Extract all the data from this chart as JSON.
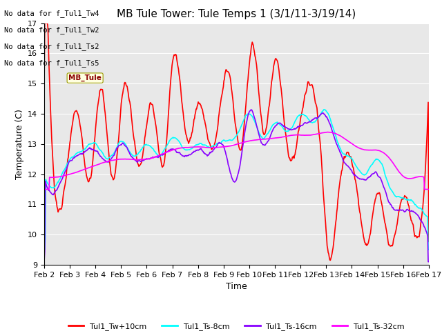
{
  "title": "MB Tule Tower: Tule Temps 1 (3/1/11-3/19/14)",
  "xlabel": "Time",
  "ylabel": "Temperature (C)",
  "ylim": [
    9.0,
    17.0
  ],
  "yticks": [
    9.0,
    10.0,
    11.0,
    12.0,
    13.0,
    14.0,
    15.0,
    16.0,
    17.0
  ],
  "xtick_labels": [
    "Feb 2",
    "Feb 3",
    "Feb 4",
    "Feb 5",
    "Feb 6",
    "Feb 7",
    "Feb 8",
    "Feb 9",
    "Feb 10",
    "Feb 11",
    "Feb 12",
    "Feb 13",
    "Feb 14",
    "Feb 15",
    "Feb 16",
    "Feb 17"
  ],
  "series": {
    "Tul1_Tw+10cm": {
      "color": "#ff0000",
      "lw": 1.2
    },
    "Tul1_Ts-8cm": {
      "color": "#00ffff",
      "lw": 1.2
    },
    "Tul1_Ts-16cm": {
      "color": "#8800ff",
      "lw": 1.2
    },
    "Tul1_Ts-32cm": {
      "color": "#ff00ff",
      "lw": 1.2
    }
  },
  "legend_texts": [
    "No data for f_Tul1_Tw4",
    "No data for f_Tul1_Tw2",
    "No data for f_Tul1_Ts2",
    "No data for f_Tul1_Ts5"
  ],
  "background_color": "#e8e8e8",
  "title_fontsize": 11,
  "axis_fontsize": 9,
  "tick_fontsize": 8
}
